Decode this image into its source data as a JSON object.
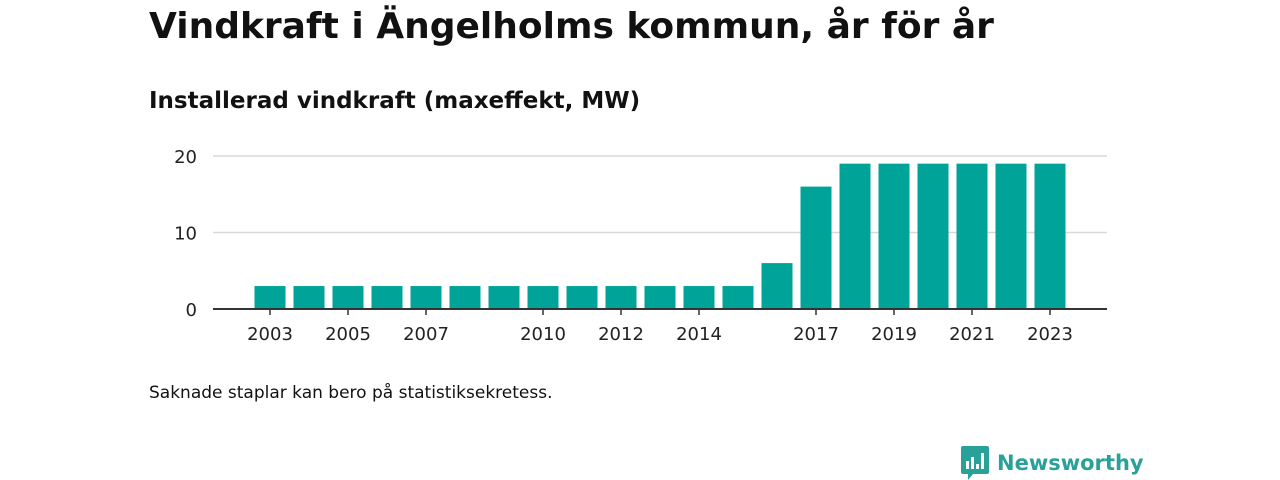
{
  "header": {
    "title": "Vindkraft i Ängelholms kommun, år för år",
    "subtitle": "Installerad vindkraft (maxeffekt, MW)"
  },
  "footnote": "Saknade staplar kan bero på statistiksekretess.",
  "brand": {
    "name": "Newsworthy",
    "icon": "newsworthy-logo-icon",
    "color": "#2aa198"
  },
  "chart_data": {
    "type": "bar",
    "title": "Vindkraft i Ängelholms kommun, år för år",
    "subtitle": "Installerad vindkraft (maxeffekt, MW)",
    "categories": [
      "2003",
      "2004",
      "2005",
      "2006",
      "2007",
      "2008",
      "2009",
      "2010",
      "2011",
      "2012",
      "2013",
      "2014",
      "2015",
      "2016",
      "2017",
      "2018",
      "2019",
      "2020",
      "2021",
      "2022",
      "2023"
    ],
    "x_tick_labels": [
      "2003",
      "2005",
      "2007",
      "2010",
      "2012",
      "2014",
      "2017",
      "2019",
      "2021",
      "2023"
    ],
    "values": [
      3,
      3,
      3,
      3,
      3,
      3,
      3,
      3,
      3,
      3,
      3,
      3,
      3,
      6,
      16,
      19,
      19,
      19,
      19,
      19,
      19
    ],
    "ylim": [
      0,
      20
    ],
    "y_ticks": [
      0,
      10,
      20
    ],
    "grid": true,
    "bar_color": "#00a398"
  }
}
